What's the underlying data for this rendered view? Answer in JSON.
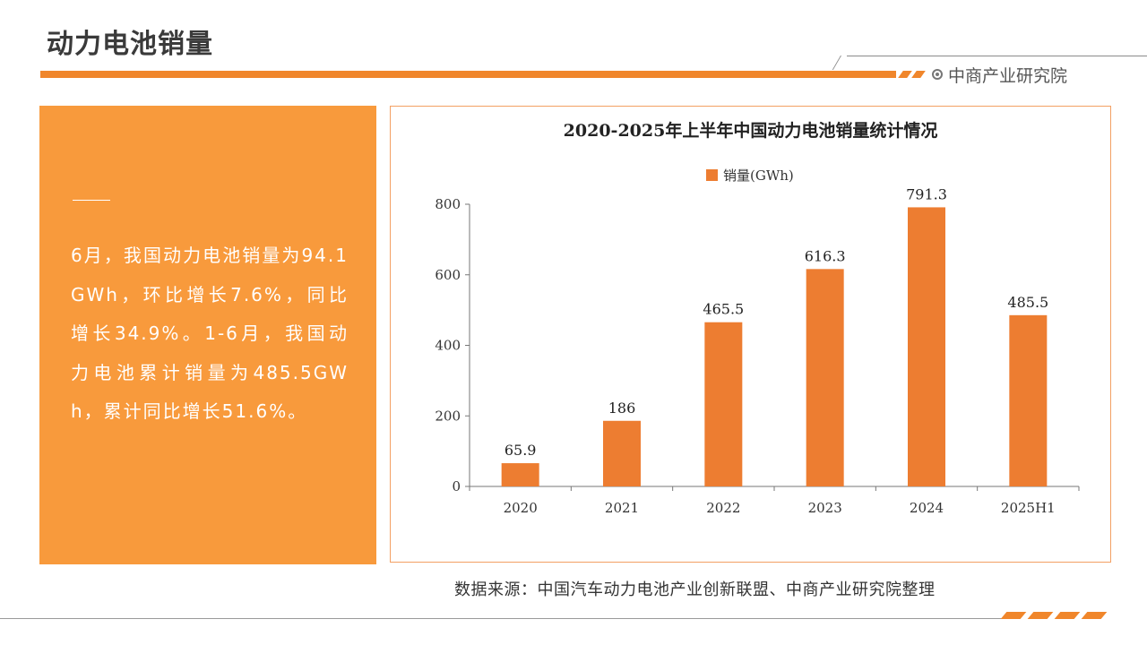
{
  "page": {
    "title": "动力电池销量",
    "brand": "中商产业研究院"
  },
  "summary": {
    "text": "6月，我国动力电池销量为94.1GWh，环比增长7.6%，同比增长34.9%。1-6月，我国动力电池累计销量为485.5GWh，累计同比增长51.6%。"
  },
  "colors": {
    "accent": "#f0862b",
    "panel": "#f89a3c",
    "bar": "#ed7d31"
  },
  "chart_data": {
    "type": "bar",
    "title": "2020-2025年上半年中国动力电池销量统计情况",
    "categories": [
      "2020",
      "2021",
      "2022",
      "2023",
      "2024",
      "2025H1"
    ],
    "series": [
      {
        "name": "销量(GWh)",
        "values": [
          65.9,
          186,
          465.5,
          616.3,
          791.3,
          485.5
        ]
      }
    ],
    "data_labels": [
      "65.9",
      "186",
      "465.5",
      "616.3",
      "791.3",
      "485.5"
    ],
    "yticks": [
      "0",
      "200",
      "400",
      "600",
      "800"
    ],
    "ylim": [
      0,
      800
    ],
    "legend": "top-center",
    "grid": false
  },
  "source": {
    "text": "数据来源：中国汽车动力电池产业创新联盟、中商产业研究院整理"
  }
}
